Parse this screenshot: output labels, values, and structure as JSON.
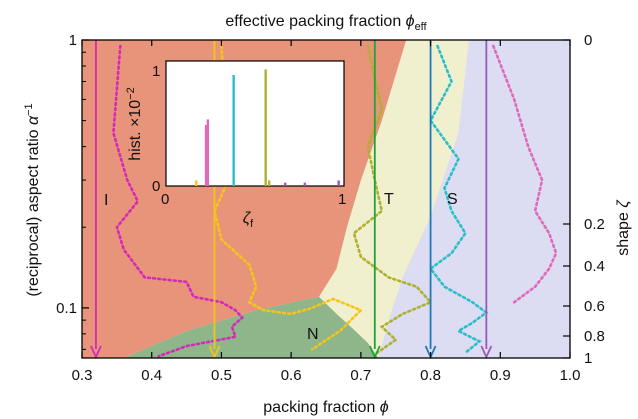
{
  "chart_data": {
    "type": "line",
    "title": "",
    "top_axis_label": "effective packing fraction ϕ_eff",
    "xlabel": "packing fraction ϕ",
    "ylabel_left": "(reciprocal) aspect ratio α⁻¹",
    "ylabel_right": "shape ζ",
    "x_ticks": [
      "0.3",
      "0.4",
      "0.5",
      "0.6",
      "0.7",
      "0.8",
      "0.9",
      "1.0"
    ],
    "xlim": [
      0.3,
      1.0
    ],
    "y_scale": "log",
    "ylim": [
      0.065,
      1.0
    ],
    "y_ticks_left": [
      "0.1",
      "1"
    ],
    "y_ticks_right": [
      "0",
      "0.2",
      "0.4",
      "0.6",
      "0.8",
      "1"
    ],
    "regions": [
      {
        "name": "I",
        "color": "#e8947a"
      },
      {
        "name": "N",
        "color": "#8fb58a"
      },
      {
        "name": "T",
        "color": "#f0f0cf"
      },
      {
        "name": "S",
        "color": "#dcdcf3"
      }
    ],
    "region_boundaries": [
      {
        "name": "I/T",
        "x": [
          0.765,
          0.73,
          0.7,
          0.68,
          0.665,
          0.64
        ],
        "y": [
          1.0,
          0.5,
          0.3,
          0.2,
          0.14,
          0.11
        ]
      },
      {
        "name": "I/N",
        "x": [
          0.36,
          0.45,
          0.55,
          0.64
        ],
        "y": [
          0.065,
          0.082,
          0.098,
          0.11
        ]
      },
      {
        "name": "N/T",
        "x": [
          0.64,
          0.665,
          0.69,
          0.71,
          0.725
        ],
        "y": [
          0.11,
          0.095,
          0.083,
          0.074,
          0.065
        ]
      },
      {
        "name": "T/S",
        "x": [
          0.855,
          0.84,
          0.8,
          0.76,
          0.74,
          0.725
        ],
        "y": [
          1.0,
          0.45,
          0.22,
          0.13,
          0.09,
          0.065
        ]
      }
    ],
    "series": [
      {
        "color": "#d42ab8",
        "phi": 0.32,
        "x": [
          0.355,
          0.345,
          0.365,
          0.38,
          0.35,
          0.36,
          0.39,
          0.45,
          0.46,
          0.5,
          0.52,
          0.53,
          0.515,
          0.52,
          0.45,
          0.41
        ],
        "y": [
          0.95,
          0.45,
          0.3,
          0.25,
          0.2,
          0.165,
          0.13,
          0.125,
          0.11,
          0.105,
          0.098,
          0.092,
          0.085,
          0.078,
          0.072,
          0.066
        ]
      },
      {
        "color": "#f5c518",
        "phi": 0.49,
        "x": [
          0.5,
          0.505,
          0.5,
          0.51,
          0.49,
          0.5,
          0.54,
          0.55,
          0.54,
          0.56,
          0.6,
          0.63,
          0.66,
          0.7,
          0.67,
          0.63
        ],
        "y": [
          0.95,
          0.6,
          0.4,
          0.3,
          0.23,
          0.18,
          0.145,
          0.12,
          0.105,
          0.098,
          0.095,
          0.1,
          0.108,
          0.098,
          0.082,
          0.07
        ]
      },
      {
        "color": "#b0b030",
        "phi": 0.72,
        "x": [
          0.71,
          0.73,
          0.71,
          0.72,
          0.73,
          0.69,
          0.7,
          0.74,
          0.78,
          0.8,
          0.76,
          0.73,
          0.75,
          0.72
        ],
        "y": [
          0.95,
          0.55,
          0.4,
          0.3,
          0.23,
          0.19,
          0.155,
          0.13,
          0.12,
          0.105,
          0.095,
          0.085,
          0.076,
          0.067
        ]
      },
      {
        "color": "#2abfc8",
        "phi": 0.8,
        "x": [
          0.81,
          0.83,
          0.8,
          0.84,
          0.82,
          0.83,
          0.85,
          0.83,
          0.8,
          0.82,
          0.86,
          0.88,
          0.86,
          0.84,
          0.87,
          0.85
        ],
        "y": [
          0.95,
          0.7,
          0.5,
          0.36,
          0.28,
          0.23,
          0.19,
          0.16,
          0.14,
          0.12,
          0.105,
          0.096,
          0.088,
          0.082,
          0.075,
          0.068
        ]
      },
      {
        "color": "#e06ab8",
        "phi": 0.88,
        "x": [
          0.89,
          0.92,
          0.94,
          0.96,
          0.95,
          0.97,
          0.98,
          0.97,
          0.95,
          0.92
        ],
        "y": [
          0.95,
          0.6,
          0.4,
          0.3,
          0.23,
          0.19,
          0.16,
          0.14,
          0.12,
          0.105
        ]
      }
    ],
    "arrows": [
      {
        "color": "#d42ab8",
        "phi": 0.32
      },
      {
        "color": "#f5c518",
        "phi": 0.49
      },
      {
        "color": "#1fa43a",
        "phi": 0.72
      },
      {
        "color": "#1f78b4",
        "phi": 0.8
      },
      {
        "color": "#9b59b6",
        "phi": 0.88
      }
    ],
    "inset": {
      "type": "bar",
      "xlabel": "ζf",
      "ylabel": "hist. ×10⁻²",
      "x_ticks": [
        "0",
        "1"
      ],
      "y_ticks": [
        "0",
        "1"
      ],
      "bars": [
        {
          "x": 0.17,
          "value": 0.05,
          "color": "#f5c518"
        },
        {
          "x": 0.225,
          "value": 0.55,
          "color": "#e06ab8"
        },
        {
          "x": 0.235,
          "value": 0.6,
          "color": "#e06ab8"
        },
        {
          "x": 0.38,
          "value": 1.0,
          "color": "#2abfc8"
        },
        {
          "x": 0.56,
          "value": 1.05,
          "color": "#b0b030"
        },
        {
          "x": 0.58,
          "value": 0.05,
          "color": "#b0b030"
        },
        {
          "x": 0.67,
          "value": 0.03,
          "color": "#9b59b6"
        },
        {
          "x": 0.78,
          "value": 0.03,
          "color": "#9b59b6"
        },
        {
          "x": 0.97,
          "value": 0.05,
          "color": "#9b59b6"
        }
      ]
    }
  }
}
